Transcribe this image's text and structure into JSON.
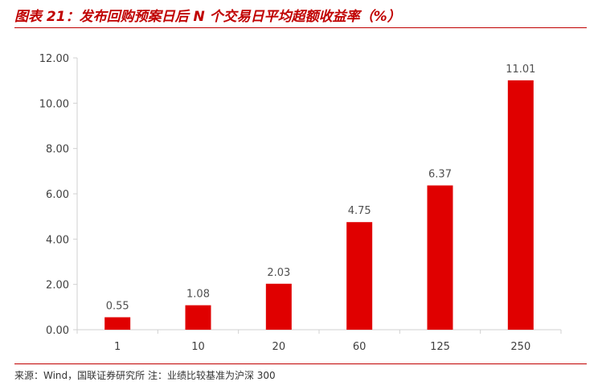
{
  "header": {
    "title": "图表 21：发布回购预案日后 N 个交易日平均超额收益率（%）"
  },
  "footer": {
    "source": "来源：Wind，国联证券研究所 注：业绩比较基准为沪深 300"
  },
  "chart_data": {
    "type": "bar",
    "categories": [
      "1",
      "10",
      "20",
      "60",
      "125",
      "250"
    ],
    "values": [
      0.55,
      1.08,
      2.03,
      4.75,
      6.37,
      11.01
    ],
    "value_labels": [
      "0.55",
      "1.08",
      "2.03",
      "4.75",
      "6.37",
      "11.01"
    ],
    "title": "图表 21：发布回购预案日后 N 个交易日平均超额收益率（%）",
    "xlabel": "",
    "ylabel": "",
    "ylim": [
      0,
      12
    ],
    "yticks": [
      "0.00",
      "2.00",
      "4.00",
      "6.00",
      "8.00",
      "10.00",
      "12.00"
    ],
    "grid": false,
    "legend": "none",
    "bar_color": "#e00000"
  }
}
